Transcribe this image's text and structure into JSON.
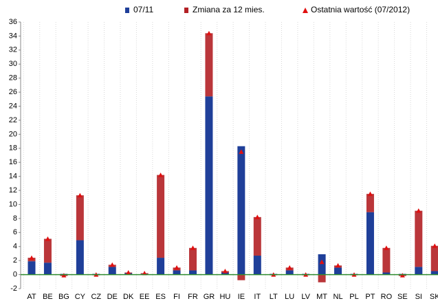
{
  "chart_data": {
    "type": "bar",
    "categories": [
      "AT",
      "BE",
      "BG",
      "CY",
      "CZ",
      "DE",
      "DK",
      "EE",
      "ES",
      "FI",
      "FR",
      "GR",
      "HU",
      "IE",
      "IT",
      "LT",
      "LU",
      "LV",
      "MT",
      "NL",
      "PL",
      "PT",
      "RO",
      "SE",
      "SI",
      "SK"
    ],
    "series": [
      {
        "name": "07/11",
        "color": "#1f3f99",
        "values": [
          1.9,
          1.7,
          0.1,
          4.9,
          0.1,
          1.1,
          0.2,
          0.1,
          2.4,
          0.6,
          0.6,
          25.4,
          0.3,
          18.3,
          2.7,
          0.1,
          0.6,
          0.1,
          2.9,
          1.0,
          0.1,
          8.9,
          0.3,
          0.1,
          1.1,
          0.5
        ]
      },
      {
        "name": "Zmiana za 12 mies.",
        "color": "#b32025",
        "values": [
          0.5,
          3.4,
          -0.2,
          6.4,
          -0.1,
          0.3,
          0.1,
          0.1,
          11.8,
          0.4,
          3.2,
          9.0,
          0.2,
          -0.8,
          5.5,
          -0.1,
          0.4,
          -0.1,
          -1.1,
          0.3,
          -0.1,
          2.6,
          3.5,
          -0.2,
          8.0,
          3.6
        ]
      },
      {
        "name": "Ostatnia wartość (07/2012)",
        "color": "#e01010",
        "values": [
          2.4,
          5.1,
          -0.1,
          11.3,
          0,
          1.4,
          0.3,
          0.2,
          14.2,
          1.0,
          3.8,
          34.4,
          0.5,
          17.5,
          8.2,
          0,
          1.0,
          0,
          1.8,
          1.3,
          0,
          11.5,
          3.8,
          -0.1,
          9.1,
          4.1
        ]
      }
    ],
    "ylim": [
      -2,
      36
    ],
    "yticks": [
      -2,
      0,
      2,
      4,
      6,
      8,
      10,
      12,
      14,
      16,
      18,
      20,
      22,
      24,
      26,
      28,
      30,
      32,
      34,
      36
    ],
    "grid": true
  }
}
